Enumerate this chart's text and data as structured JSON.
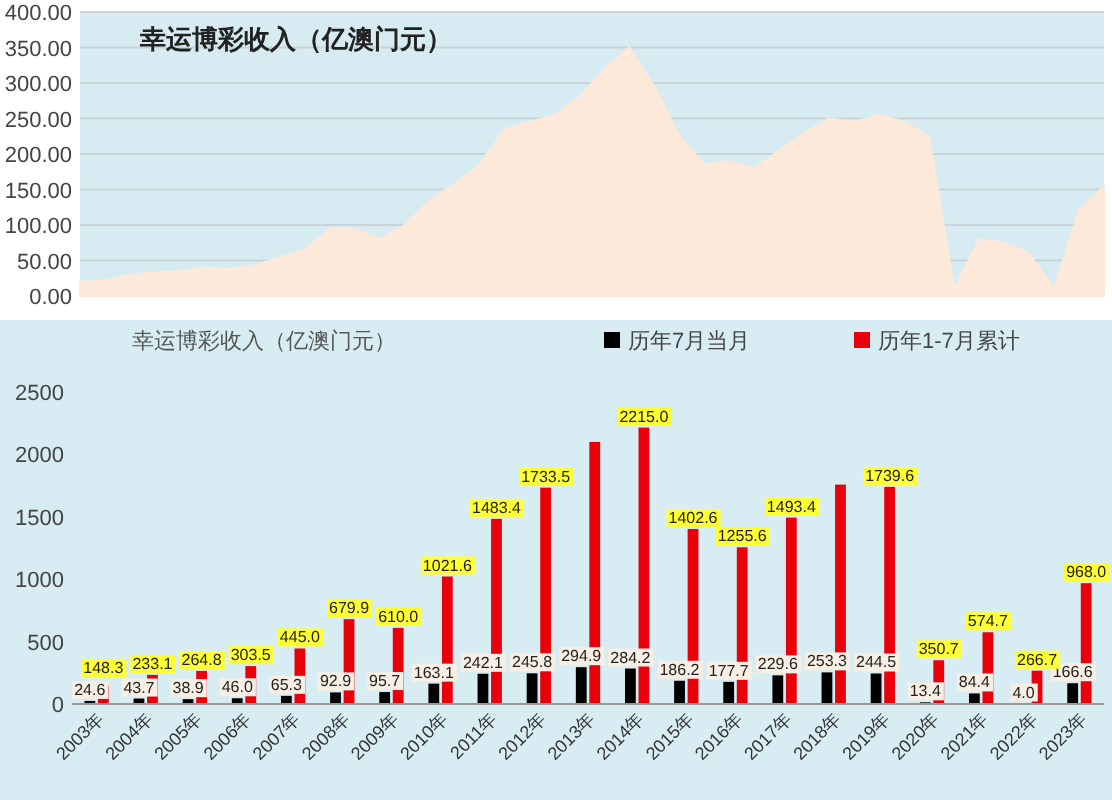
{
  "chart_data": [
    {
      "type": "area",
      "title": "幸运博彩收入（亿澳门元）",
      "categories": [
        null,
        null,
        null,
        null,
        null,
        null,
        null,
        null,
        null,
        null,
        null,
        null,
        null,
        null,
        null,
        null,
        null,
        null,
        null,
        null,
        null,
        null,
        null,
        null,
        null,
        null,
        null,
        null,
        null,
        null,
        null,
        null,
        null,
        null,
        null,
        null,
        null,
        null,
        null,
        null,
        null,
        null
      ],
      "series": [
        {
          "color": "#fde9d9",
          "values": [
            20,
            22,
            30,
            33,
            35,
            40,
            38,
            43,
            55,
            65,
            95,
            95,
            80,
            100,
            135,
            158,
            185,
            235,
            245,
            255,
            280,
            320,
            350,
            295,
            225,
            185,
            190,
            180,
            205,
            230,
            250,
            245,
            255,
            245,
            225,
            10,
            80,
            75,
            60,
            10,
            120,
            155
          ]
        }
      ],
      "ylim": [
        0,
        400
      ],
      "yticks": [
        {
          "value": 0,
          "label": "0.00"
        },
        {
          "value": 50,
          "label": "50.00"
        },
        {
          "value": 100,
          "label": "100.00"
        },
        {
          "value": 150,
          "label": "150.00"
        },
        {
          "value": 200,
          "label": "200.00"
        },
        {
          "value": 250,
          "label": "250.00"
        },
        {
          "value": 300,
          "label": "300.00"
        },
        {
          "value": 350,
          "label": "350.00"
        },
        {
          "value": 400,
          "label": "400.00"
        }
      ],
      "grid": "y",
      "tick_labels": "y"
    },
    {
      "type": "bar",
      "title": "幸运博彩收入（亿澳门元）",
      "categories": [
        "2003年",
        "2004年",
        "2005年",
        "2006年",
        "2007年",
        "2008年",
        "2009年",
        "2010年",
        "2011年",
        "2012年",
        "2013年",
        "2014年",
        "2015年",
        "2016年",
        "2017年",
        "2018年",
        "2019年",
        "2020年",
        "2021年",
        "2022年",
        "2023年"
      ],
      "series": [
        {
          "name": "历年7月当月",
          "color": "#000000",
          "values": [
            24.6,
            43.7,
            38.9,
            46.0,
            65.3,
            92.9,
            95.7,
            163.1,
            242.1,
            245.8,
            294.9,
            284.2,
            186.2,
            177.7,
            229.6,
            253.3,
            244.5,
            13.4,
            84.4,
            4.0,
            166.6
          ],
          "value_labels": [
            "24.6",
            "43.7",
            "38.9",
            "46.0",
            "65.3",
            "92.9",
            "95.7",
            "163.1",
            "242.1",
            "245.8",
            "294.9",
            "284.2",
            "186.2",
            "177.7",
            "229.6",
            "253.3",
            "244.5",
            "13.4",
            "84.4",
            "4.0",
            "166.6"
          ]
        },
        {
          "name": "历年1-7月累计",
          "color": "#e8000b",
          "values": [
            148.3,
            233.1,
            264.8,
            303.5,
            445.0,
            679.9,
            610.0,
            1021.6,
            1483.4,
            1733.5,
            2100,
            2215.0,
            1402.6,
            1255.6,
            1493.4,
            1758,
            1739.6,
            350.7,
            574.7,
            266.7,
            968.0
          ],
          "value_labels": [
            "148.3",
            "233.1",
            "264.8",
            "303.5",
            "445.0",
            "679.9",
            "610.0",
            "1021.6",
            "1483.4",
            "1733.5",
            null,
            "2215.0",
            "1402.6",
            "1255.6",
            "1493.4",
            null,
            "1739.6",
            "350.7",
            "574.7",
            "266.7",
            "968.0"
          ]
        }
      ],
      "ylim": [
        0,
        2500
      ],
      "yticks": [
        0,
        500,
        1000,
        1500,
        2000,
        2500
      ],
      "legend": "top right"
    }
  ]
}
